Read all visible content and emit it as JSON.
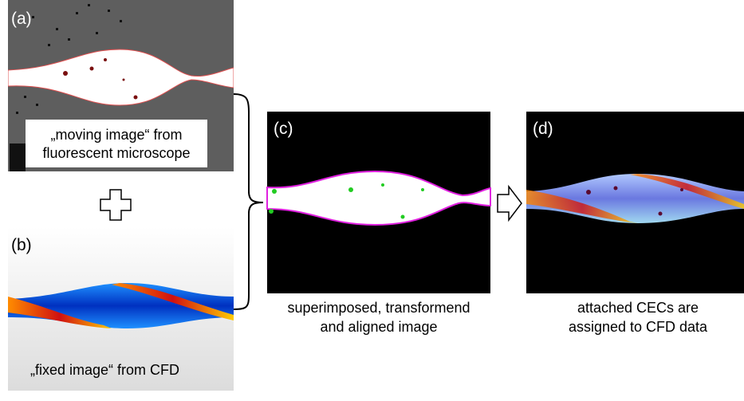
{
  "panels": [
    {
      "label": "(a)",
      "caption": [
        "„moving image“ from",
        "fluorescent microscope"
      ]
    },
    {
      "label": "(b)",
      "caption": [
        "„fixed image“ from CFD"
      ]
    },
    {
      "label": "(c)",
      "caption": [
        "superimposed, transformend",
        "and aligned image"
      ]
    },
    {
      "label": "(d)",
      "caption": [
        "attached CECs are",
        "assigned to CFD data"
      ]
    }
  ]
}
